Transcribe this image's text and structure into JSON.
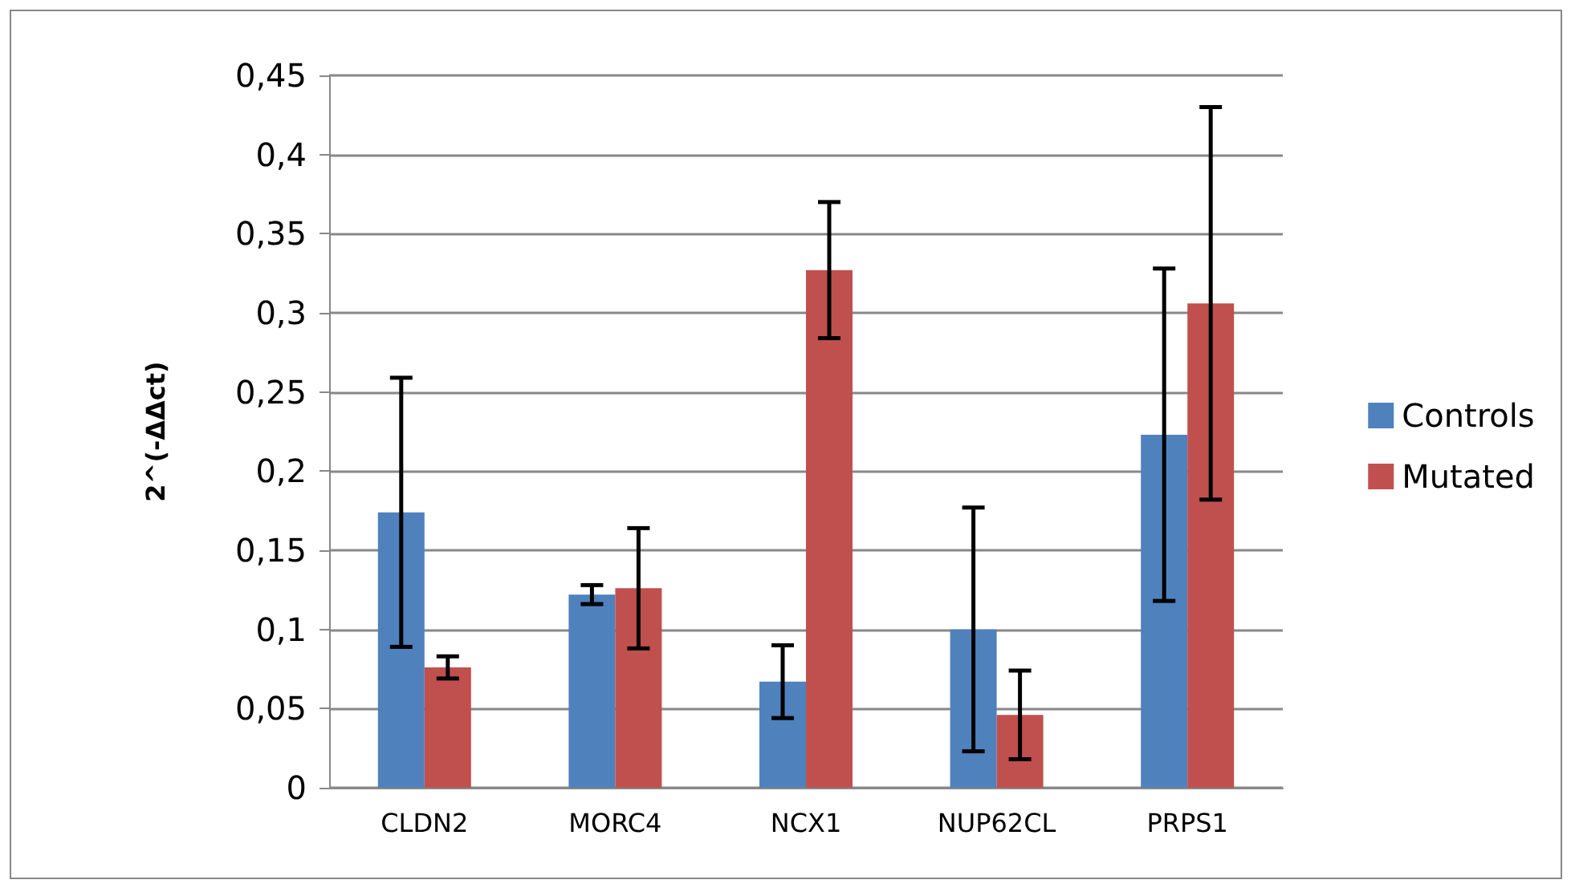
{
  "chart_data": {
    "type": "bar",
    "ylabel": "2^(-ΔΔct)",
    "categories": [
      "CLDN2",
      "MORC4",
      "NCX1",
      "NUP62CL",
      "PRPS1"
    ],
    "series": [
      {
        "name": "Controls",
        "color": "#4f81bd",
        "values": [
          0.174,
          0.122,
          0.067,
          0.1,
          0.223
        ],
        "errors": [
          0.085,
          0.006,
          0.023,
          0.077,
          0.105
        ]
      },
      {
        "name": "Mutated",
        "color": "#c0504d",
        "values": [
          0.076,
          0.126,
          0.327,
          0.046,
          0.306
        ],
        "errors": [
          0.007,
          0.038,
          0.043,
          0.028,
          0.124
        ]
      }
    ],
    "ylim": [
      0,
      0.45
    ],
    "yticks": [
      {
        "value": 0,
        "label": "0"
      },
      {
        "value": 0.05,
        "label": "0,05"
      },
      {
        "value": 0.1,
        "label": "0,1"
      },
      {
        "value": 0.15,
        "label": "0,15"
      },
      {
        "value": 0.2,
        "label": "0,2"
      },
      {
        "value": 0.25,
        "label": "0,25"
      },
      {
        "value": 0.3,
        "label": "0,3"
      },
      {
        "value": 0.35,
        "label": "0,35"
      },
      {
        "value": 0.4,
        "label": "0,4"
      },
      {
        "value": 0.45,
        "label": "0,45"
      }
    ],
    "grid": true,
    "legend": "right"
  }
}
